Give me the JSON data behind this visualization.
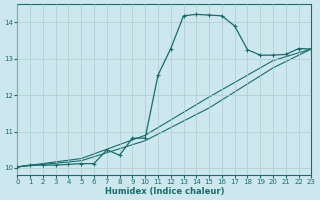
{
  "xlabel": "Humidex (Indice chaleur)",
  "background_color": "#cce8ee",
  "grid_color": "#aacccc",
  "line_color": "#1a6b6b",
  "xlim": [
    0,
    23
  ],
  "ylim": [
    9.8,
    14.5
  ],
  "xticks": [
    0,
    1,
    2,
    3,
    4,
    5,
    6,
    7,
    8,
    9,
    10,
    11,
    12,
    13,
    14,
    15,
    16,
    17,
    18,
    19,
    20,
    21,
    22,
    23
  ],
  "yticks": [
    10,
    11,
    12,
    13,
    14
  ],
  "line1_x": [
    0,
    23
  ],
  "line1_y": [
    10.03,
    13.27
  ],
  "line2_x": [
    0,
    23
  ],
  "line2_y": [
    10.03,
    13.27
  ],
  "curve_x": [
    0,
    1,
    2,
    3,
    4,
    5,
    6,
    7,
    8,
    9,
    10,
    11,
    12,
    13,
    14,
    15,
    16,
    17,
    18,
    19,
    20,
    21,
    22,
    23
  ],
  "curve_y": [
    10.03,
    10.08,
    10.08,
    10.08,
    10.1,
    10.12,
    10.12,
    10.5,
    10.35,
    10.82,
    10.82,
    12.55,
    13.28,
    14.18,
    14.22,
    14.2,
    14.18,
    13.9,
    13.25,
    13.1,
    13.1,
    13.12,
    13.28,
    13.27
  ],
  "straight1_x": [
    0,
    5,
    10,
    15,
    20,
    23
  ],
  "straight1_y": [
    10.03,
    10.26,
    10.9,
    11.95,
    12.95,
    13.27
  ],
  "straight2_x": [
    0,
    5,
    10,
    15,
    20,
    23
  ],
  "straight2_y": [
    10.03,
    10.2,
    10.75,
    11.65,
    12.75,
    13.27
  ]
}
